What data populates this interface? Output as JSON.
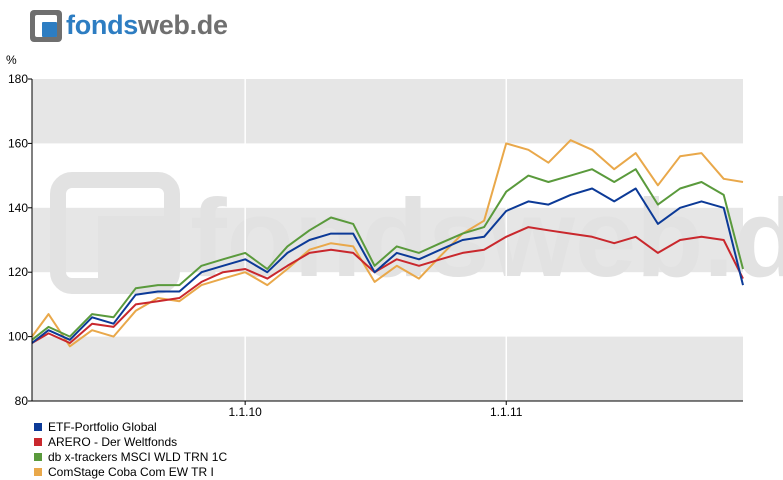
{
  "brand": {
    "name_part1": "fonds",
    "name_part2": "web.de",
    "watermark_part1": "fonds",
    "watermark_part2": "web.de",
    "colors": {
      "accent_blue": "#2d7dc2",
      "text_grey": "#6f6f6f"
    }
  },
  "chart_data": {
    "type": "line",
    "ylabel": "%",
    "ylim": [
      80,
      180
    ],
    "yticks": [
      80,
      100,
      120,
      140,
      160,
      180
    ],
    "xlim": [
      "2009-03-09",
      "2011-11-28"
    ],
    "xticks": [
      {
        "date": "2010-01-01",
        "label": "1.1.10"
      },
      {
        "date": "2011-01-01",
        "label": "1.1.11"
      }
    ],
    "grid": "alternating horizontal bands",
    "legend_position": "bottom-left",
    "series": [
      {
        "name": "ETF-Portfolio Global",
        "color": "#0c3a97",
        "x": [
          "2009-03-09",
          "2009-04-01",
          "2009-05-01",
          "2009-06-01",
          "2009-07-01",
          "2009-08-01",
          "2009-09-01",
          "2009-10-01",
          "2009-11-01",
          "2009-12-01",
          "2010-01-01",
          "2010-02-01",
          "2010-03-01",
          "2010-04-01",
          "2010-05-01",
          "2010-06-01",
          "2010-07-01",
          "2010-08-01",
          "2010-09-01",
          "2010-10-01",
          "2010-11-01",
          "2010-12-01",
          "2011-01-01",
          "2011-02-01",
          "2011-03-01",
          "2011-04-01",
          "2011-05-01",
          "2011-06-01",
          "2011-07-01",
          "2011-08-01",
          "2011-09-01",
          "2011-10-01",
          "2011-11-01",
          "2011-11-28"
        ],
        "values": [
          98,
          102,
          99,
          106,
          104,
          113,
          114,
          114,
          120,
          122,
          124,
          120,
          126,
          130,
          132,
          132,
          120,
          126,
          124,
          127,
          130,
          131,
          139,
          142,
          141,
          144,
          146,
          142,
          146,
          135,
          140,
          142,
          140,
          116
        ]
      },
      {
        "name": "ARERO - Der Weltfonds",
        "color": "#c9282d",
        "x": [
          "2009-03-09",
          "2009-04-01",
          "2009-05-01",
          "2009-06-01",
          "2009-07-01",
          "2009-08-01",
          "2009-09-01",
          "2009-10-01",
          "2009-11-01",
          "2009-12-01",
          "2010-01-01",
          "2010-02-01",
          "2010-03-01",
          "2010-04-01",
          "2010-05-01",
          "2010-06-01",
          "2010-07-01",
          "2010-08-01",
          "2010-09-01",
          "2010-10-01",
          "2010-11-01",
          "2010-12-01",
          "2011-01-01",
          "2011-02-01",
          "2011-03-01",
          "2011-04-01",
          "2011-05-01",
          "2011-06-01",
          "2011-07-01",
          "2011-08-01",
          "2011-09-01",
          "2011-10-01",
          "2011-11-01",
          "2011-11-28"
        ],
        "values": [
          98,
          101,
          98,
          104,
          103,
          110,
          111,
          112,
          117,
          120,
          121,
          118,
          122,
          126,
          127,
          126,
          120,
          124,
          122,
          124,
          126,
          127,
          131,
          134,
          133,
          132,
          131,
          129,
          131,
          126,
          130,
          131,
          130,
          118
        ]
      },
      {
        "name": "db x-trackers MSCI WLD TRN 1C",
        "color": "#5a9a3c",
        "x": [
          "2009-03-09",
          "2009-04-01",
          "2009-05-01",
          "2009-06-01",
          "2009-07-01",
          "2009-08-01",
          "2009-09-01",
          "2009-10-01",
          "2009-11-01",
          "2009-12-01",
          "2010-01-01",
          "2010-02-01",
          "2010-03-01",
          "2010-04-01",
          "2010-05-01",
          "2010-06-01",
          "2010-07-01",
          "2010-08-01",
          "2010-09-01",
          "2010-10-01",
          "2010-11-01",
          "2010-12-01",
          "2011-01-01",
          "2011-02-01",
          "2011-03-01",
          "2011-04-01",
          "2011-05-01",
          "2011-06-01",
          "2011-07-01",
          "2011-08-01",
          "2011-09-01",
          "2011-10-01",
          "2011-11-01",
          "2011-11-28"
        ],
        "values": [
          99,
          103,
          100,
          107,
          106,
          115,
          116,
          116,
          122,
          124,
          126,
          121,
          128,
          133,
          137,
          135,
          122,
          128,
          126,
          129,
          132,
          134,
          145,
          150,
          148,
          150,
          152,
          148,
          152,
          141,
          146,
          148,
          144,
          121
        ]
      },
      {
        "name": "ComStage Coba Com EW TR I",
        "color": "#e9a84a",
        "x": [
          "2009-03-09",
          "2009-04-01",
          "2009-05-01",
          "2009-06-01",
          "2009-07-01",
          "2009-08-01",
          "2009-09-01",
          "2009-10-01",
          "2009-11-01",
          "2009-12-01",
          "2010-01-01",
          "2010-02-01",
          "2010-03-01",
          "2010-04-01",
          "2010-05-01",
          "2010-06-01",
          "2010-07-01",
          "2010-08-01",
          "2010-09-01",
          "2010-10-01",
          "2010-11-01",
          "2010-12-01",
          "2011-01-01",
          "2011-02-01",
          "2011-03-01",
          "2011-04-01",
          "2011-05-01",
          "2011-06-01",
          "2011-07-01",
          "2011-08-01",
          "2011-09-01",
          "2011-10-01",
          "2011-11-01",
          "2011-11-28"
        ],
        "values": [
          100,
          107,
          97,
          102,
          100,
          108,
          112,
          111,
          116,
          118,
          120,
          116,
          121,
          127,
          129,
          128,
          117,
          122,
          118,
          125,
          132,
          136,
          160,
          158,
          154,
          161,
          158,
          152,
          157,
          147,
          156,
          157,
          149,
          148
        ]
      }
    ]
  }
}
